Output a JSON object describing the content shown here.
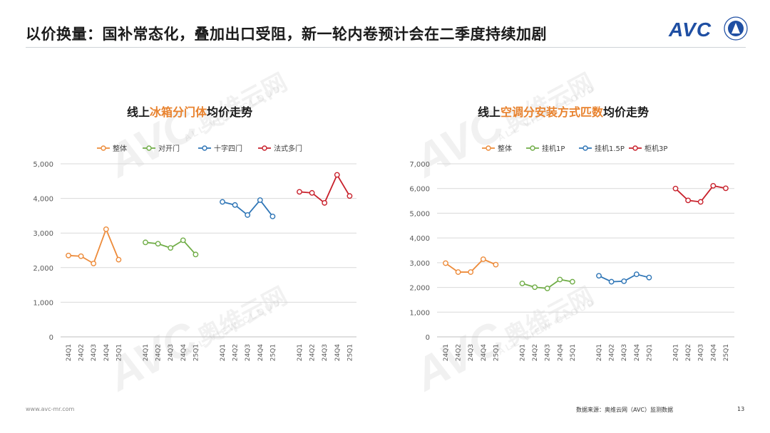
{
  "header": {
    "title": "以价换量：国补常态化，叠加出口受阻，新一轮内卷预计会在二季度持续加剧",
    "logo_text": "AVC"
  },
  "watermark": {
    "big": "AVC",
    "cn": "奥维云网",
    "sub": "ALL VIEW CLOUD"
  },
  "footer": {
    "website": "www.avc-mr.com",
    "source": "数据来源：奥维云网（AVC）监测数据",
    "page": "13"
  },
  "colors": {
    "orange": "#ed8b3a",
    "green": "#70ad47",
    "blue": "#2e75b6",
    "red": "#c8202b",
    "title_accent": "#e8822e"
  },
  "chart_data": [
    {
      "type": "line",
      "title_prefix": "线上",
      "title_highlight": "冰箱分门体",
      "title_suffix": "均价走势",
      "ylim": [
        0,
        5000
      ],
      "yticks": [
        0,
        1000,
        2000,
        3000,
        4000,
        5000
      ],
      "ytick_labels": [
        "0",
        "1,000",
        "2,000",
        "3,000",
        "4,000",
        "5,000"
      ],
      "legend_position": "top",
      "grid": true,
      "series": [
        {
          "name": "整体",
          "color": "#ed8b3a",
          "x": [
            "24Q1",
            "24Q2",
            "24Q3",
            "24Q4",
            "25Q1"
          ],
          "values": [
            2350,
            2330,
            2120,
            3110,
            2230
          ]
        },
        {
          "name": "对开门",
          "color": "#70ad47",
          "x": [
            "24Q1",
            "24Q2",
            "24Q3",
            "24Q4",
            "25Q1"
          ],
          "values": [
            2730,
            2690,
            2570,
            2790,
            2380
          ]
        },
        {
          "name": "十字四门",
          "color": "#2e75b6",
          "x": [
            "24Q1",
            "24Q2",
            "24Q3",
            "24Q4",
            "25Q1"
          ],
          "values": [
            3900,
            3810,
            3520,
            3950,
            3480
          ]
        },
        {
          "name": "法式多门",
          "color": "#c8202b",
          "x": [
            "24Q1",
            "24Q2",
            "24Q3",
            "24Q4",
            "25Q1"
          ],
          "values": [
            4190,
            4160,
            3870,
            4680,
            4070
          ]
        }
      ]
    },
    {
      "type": "line",
      "title_prefix": "线上",
      "title_highlight": "空调分安装方式匹数",
      "title_suffix": "均价走势",
      "ylim": [
        0,
        7000
      ],
      "yticks": [
        0,
        1000,
        2000,
        3000,
        4000,
        5000,
        6000,
        7000
      ],
      "ytick_labels": [
        "0",
        "1,000",
        "2,000",
        "3,000",
        "4,000",
        "5,000",
        "6,000",
        "7,000"
      ],
      "legend_position": "top",
      "grid": true,
      "series": [
        {
          "name": "整体",
          "color": "#ed8b3a",
          "x": [
            "24Q1",
            "24Q2",
            "24Q3",
            "24Q4",
            "25Q1"
          ],
          "values": [
            2980,
            2620,
            2620,
            3140,
            2920
          ]
        },
        {
          "name": "挂机1P",
          "color": "#70ad47",
          "x": [
            "24Q1",
            "24Q2",
            "24Q3",
            "24Q4",
            "25Q1"
          ],
          "values": [
            2160,
            2010,
            1960,
            2320,
            2230
          ]
        },
        {
          "name": "挂机1.5P",
          "color": "#2e75b6",
          "x": [
            "24Q1",
            "24Q2",
            "24Q3",
            "24Q4",
            "25Q1"
          ],
          "values": [
            2470,
            2230,
            2250,
            2530,
            2400
          ]
        },
        {
          "name": "柜机3P",
          "color": "#c8202b",
          "x": [
            "24Q1",
            "24Q2",
            "24Q3",
            "24Q4",
            "25Q1"
          ],
          "values": [
            6000,
            5520,
            5460,
            6110,
            6010
          ]
        }
      ]
    }
  ]
}
